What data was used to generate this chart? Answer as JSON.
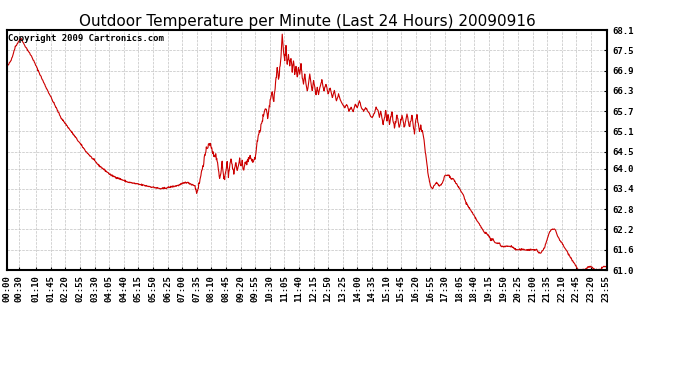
{
  "title": "Outdoor Temperature per Minute (Last 24 Hours) 20090916",
  "copyright": "Copyright 2009 Cartronics.com",
  "line_color": "#cc0000",
  "background_color": "#ffffff",
  "plot_bg_color": "#ffffff",
  "grid_color": "#bbbbbb",
  "ylim": [
    61.0,
    68.1
  ],
  "yticks": [
    61.0,
    61.6,
    62.2,
    62.8,
    63.4,
    64.0,
    64.5,
    65.1,
    65.7,
    66.3,
    66.9,
    67.5,
    68.1
  ],
  "xtick_labels": [
    "00:00",
    "00:30",
    "01:10",
    "01:45",
    "02:20",
    "02:55",
    "03:30",
    "04:05",
    "04:40",
    "05:15",
    "05:50",
    "06:25",
    "07:00",
    "07:35",
    "08:10",
    "08:45",
    "09:20",
    "09:55",
    "10:30",
    "11:05",
    "11:40",
    "12:15",
    "12:50",
    "13:25",
    "14:00",
    "14:35",
    "15:10",
    "15:45",
    "16:20",
    "16:55",
    "17:30",
    "18:05",
    "18:40",
    "19:15",
    "19:50",
    "20:25",
    "21:00",
    "21:35",
    "22:10",
    "22:45",
    "23:20",
    "23:55"
  ],
  "tick_positions_min": [
    0,
    30,
    70,
    105,
    140,
    175,
    210,
    245,
    280,
    315,
    350,
    385,
    420,
    455,
    490,
    525,
    560,
    595,
    630,
    665,
    700,
    735,
    770,
    805,
    840,
    875,
    910,
    945,
    980,
    1015,
    1050,
    1085,
    1120,
    1155,
    1190,
    1225,
    1260,
    1295,
    1330,
    1365,
    1400,
    1435
  ],
  "title_fontsize": 11,
  "tick_fontsize": 6.5,
  "copyright_fontsize": 6.5,
  "waypoints": [
    [
      0,
      67.0
    ],
    [
      10,
      67.2
    ],
    [
      20,
      67.6
    ],
    [
      30,
      67.8
    ],
    [
      35,
      67.85
    ],
    [
      40,
      67.7
    ],
    [
      50,
      67.5
    ],
    [
      60,
      67.3
    ],
    [
      75,
      66.9
    ],
    [
      90,
      66.5
    ],
    [
      110,
      66.0
    ],
    [
      130,
      65.5
    ],
    [
      160,
      65.0
    ],
    [
      190,
      64.5
    ],
    [
      220,
      64.1
    ],
    [
      250,
      63.8
    ],
    [
      290,
      63.6
    ],
    [
      330,
      63.5
    ],
    [
      370,
      63.4
    ],
    [
      410,
      63.5
    ],
    [
      430,
      63.6
    ],
    [
      450,
      63.5
    ],
    [
      455,
      63.3
    ],
    [
      460,
      63.5
    ],
    [
      465,
      63.8
    ],
    [
      470,
      64.1
    ],
    [
      475,
      64.4
    ],
    [
      480,
      64.6
    ],
    [
      485,
      64.8
    ],
    [
      490,
      64.6
    ],
    [
      495,
      64.4
    ],
    [
      500,
      64.4
    ],
    [
      505,
      64.2
    ],
    [
      508,
      63.9
    ],
    [
      510,
      63.7
    ],
    [
      513,
      63.9
    ],
    [
      516,
      64.2
    ],
    [
      519,
      63.8
    ],
    [
      522,
      63.7
    ],
    [
      525,
      64.0
    ],
    [
      528,
      64.2
    ],
    [
      531,
      63.8
    ],
    [
      534,
      64.1
    ],
    [
      537,
      64.3
    ],
    [
      540,
      64.1
    ],
    [
      543,
      63.9
    ],
    [
      546,
      64.0
    ],
    [
      549,
      64.2
    ],
    [
      552,
      63.9
    ],
    [
      555,
      64.1
    ],
    [
      558,
      64.3
    ],
    [
      561,
      64.0
    ],
    [
      564,
      64.2
    ],
    [
      567,
      64.0
    ],
    [
      570,
      64.1
    ],
    [
      575,
      64.2
    ],
    [
      580,
      64.3
    ],
    [
      585,
      64.3
    ],
    [
      590,
      64.2
    ],
    [
      595,
      64.3
    ],
    [
      600,
      64.8
    ],
    [
      610,
      65.3
    ],
    [
      620,
      65.8
    ],
    [
      625,
      65.5
    ],
    [
      630,
      65.9
    ],
    [
      635,
      66.3
    ],
    [
      640,
      66.0
    ],
    [
      645,
      66.7
    ],
    [
      648,
      67.0
    ],
    [
      651,
      66.6
    ],
    [
      654,
      66.9
    ],
    [
      657,
      67.3
    ],
    [
      660,
      68.0
    ],
    [
      663,
      67.5
    ],
    [
      666,
      67.2
    ],
    [
      669,
      67.6
    ],
    [
      672,
      67.1
    ],
    [
      675,
      67.4
    ],
    [
      678,
      67.0
    ],
    [
      681,
      67.3
    ],
    [
      684,
      66.9
    ],
    [
      687,
      67.2
    ],
    [
      690,
      66.8
    ],
    [
      693,
      67.0
    ],
    [
      696,
      66.7
    ],
    [
      699,
      67.0
    ],
    [
      702,
      66.8
    ],
    [
      705,
      67.1
    ],
    [
      708,
      66.7
    ],
    [
      711,
      66.5
    ],
    [
      714,
      66.8
    ],
    [
      717,
      66.5
    ],
    [
      720,
      66.3
    ],
    [
      723,
      66.5
    ],
    [
      726,
      66.8
    ],
    [
      729,
      66.5
    ],
    [
      732,
      66.3
    ],
    [
      735,
      66.6
    ],
    [
      738,
      66.4
    ],
    [
      741,
      66.2
    ],
    [
      744,
      66.4
    ],
    [
      747,
      66.2
    ],
    [
      750,
      66.4
    ],
    [
      755,
      66.6
    ],
    [
      760,
      66.3
    ],
    [
      765,
      66.5
    ],
    [
      770,
      66.2
    ],
    [
      775,
      66.4
    ],
    [
      780,
      66.1
    ],
    [
      785,
      66.3
    ],
    [
      790,
      66.0
    ],
    [
      795,
      66.2
    ],
    [
      800,
      66.0
    ],
    [
      805,
      65.9
    ],
    [
      810,
      65.8
    ],
    [
      815,
      65.9
    ],
    [
      820,
      65.7
    ],
    [
      825,
      65.8
    ],
    [
      830,
      65.7
    ],
    [
      835,
      65.9
    ],
    [
      840,
      65.8
    ],
    [
      845,
      66.0
    ],
    [
      850,
      65.8
    ],
    [
      855,
      65.7
    ],
    [
      860,
      65.8
    ],
    [
      865,
      65.7
    ],
    [
      870,
      65.6
    ],
    [
      875,
      65.5
    ],
    [
      880,
      65.6
    ],
    [
      885,
      65.8
    ],
    [
      890,
      65.7
    ],
    [
      893,
      65.5
    ],
    [
      896,
      65.7
    ],
    [
      899,
      65.5
    ],
    [
      902,
      65.3
    ],
    [
      905,
      65.5
    ],
    [
      908,
      65.7
    ],
    [
      911,
      65.4
    ],
    [
      914,
      65.6
    ],
    [
      917,
      65.3
    ],
    [
      920,
      65.5
    ],
    [
      923,
      65.7
    ],
    [
      926,
      65.4
    ],
    [
      929,
      65.2
    ],
    [
      932,
      65.4
    ],
    [
      935,
      65.6
    ],
    [
      938,
      65.4
    ],
    [
      941,
      65.2
    ],
    [
      944,
      65.4
    ],
    [
      947,
      65.6
    ],
    [
      950,
      65.4
    ],
    [
      953,
      65.2
    ],
    [
      956,
      65.4
    ],
    [
      959,
      65.6
    ],
    [
      962,
      65.4
    ],
    [
      965,
      65.2
    ],
    [
      968,
      65.4
    ],
    [
      971,
      65.6
    ],
    [
      974,
      65.3
    ],
    [
      977,
      65.1
    ],
    [
      980,
      65.4
    ],
    [
      983,
      65.6
    ],
    [
      986,
      65.3
    ],
    [
      989,
      65.1
    ],
    [
      992,
      65.3
    ],
    [
      995,
      65.1
    ],
    [
      998,
      65.0
    ],
    [
      1001,
      64.7
    ],
    [
      1004,
      64.4
    ],
    [
      1007,
      64.1
    ],
    [
      1010,
      63.8
    ],
    [
      1015,
      63.5
    ],
    [
      1020,
      63.4
    ],
    [
      1025,
      63.5
    ],
    [
      1030,
      63.6
    ],
    [
      1035,
      63.5
    ],
    [
      1040,
      63.5
    ],
    [
      1045,
      63.6
    ],
    [
      1050,
      63.8
    ],
    [
      1055,
      63.8
    ],
    [
      1060,
      63.8
    ],
    [
      1065,
      63.7
    ],
    [
      1070,
      63.7
    ],
    [
      1075,
      63.6
    ],
    [
      1080,
      63.5
    ],
    [
      1085,
      63.4
    ],
    [
      1090,
      63.3
    ],
    [
      1095,
      63.2
    ],
    [
      1100,
      63.0
    ],
    [
      1105,
      62.9
    ],
    [
      1110,
      62.8
    ],
    [
      1115,
      62.7
    ],
    [
      1120,
      62.6
    ],
    [
      1125,
      62.5
    ],
    [
      1130,
      62.4
    ],
    [
      1135,
      62.3
    ],
    [
      1140,
      62.2
    ],
    [
      1145,
      62.1
    ],
    [
      1150,
      62.1
    ],
    [
      1155,
      62.0
    ],
    [
      1160,
      61.9
    ],
    [
      1165,
      61.9
    ],
    [
      1170,
      61.8
    ],
    [
      1175,
      61.8
    ],
    [
      1180,
      61.8
    ],
    [
      1185,
      61.7
    ],
    [
      1190,
      61.7
    ],
    [
      1195,
      61.7
    ],
    [
      1200,
      61.7
    ],
    [
      1210,
      61.7
    ],
    [
      1220,
      61.6
    ],
    [
      1230,
      61.6
    ],
    [
      1240,
      61.6
    ],
    [
      1250,
      61.6
    ],
    [
      1260,
      61.6
    ],
    [
      1270,
      61.6
    ],
    [
      1275,
      61.5
    ],
    [
      1280,
      61.5
    ],
    [
      1285,
      61.6
    ],
    [
      1290,
      61.7
    ],
    [
      1295,
      61.9
    ],
    [
      1300,
      62.1
    ],
    [
      1305,
      62.2
    ],
    [
      1310,
      62.2
    ],
    [
      1315,
      62.2
    ],
    [
      1320,
      62.0
    ],
    [
      1325,
      61.9
    ],
    [
      1330,
      61.8
    ],
    [
      1335,
      61.7
    ],
    [
      1340,
      61.6
    ],
    [
      1345,
      61.5
    ],
    [
      1350,
      61.4
    ],
    [
      1355,
      61.3
    ],
    [
      1360,
      61.2
    ],
    [
      1365,
      61.1
    ],
    [
      1370,
      61.0
    ],
    [
      1375,
      61.0
    ],
    [
      1380,
      61.0
    ],
    [
      1385,
      61.0
    ],
    [
      1390,
      61.05
    ],
    [
      1395,
      61.1
    ],
    [
      1400,
      61.1
    ],
    [
      1405,
      61.05
    ],
    [
      1410,
      61.0
    ],
    [
      1415,
      61.0
    ],
    [
      1420,
      61.0
    ],
    [
      1425,
      61.05
    ],
    [
      1430,
      61.1
    ],
    [
      1435,
      61.1
    ],
    [
      1439,
      61.1
    ]
  ]
}
